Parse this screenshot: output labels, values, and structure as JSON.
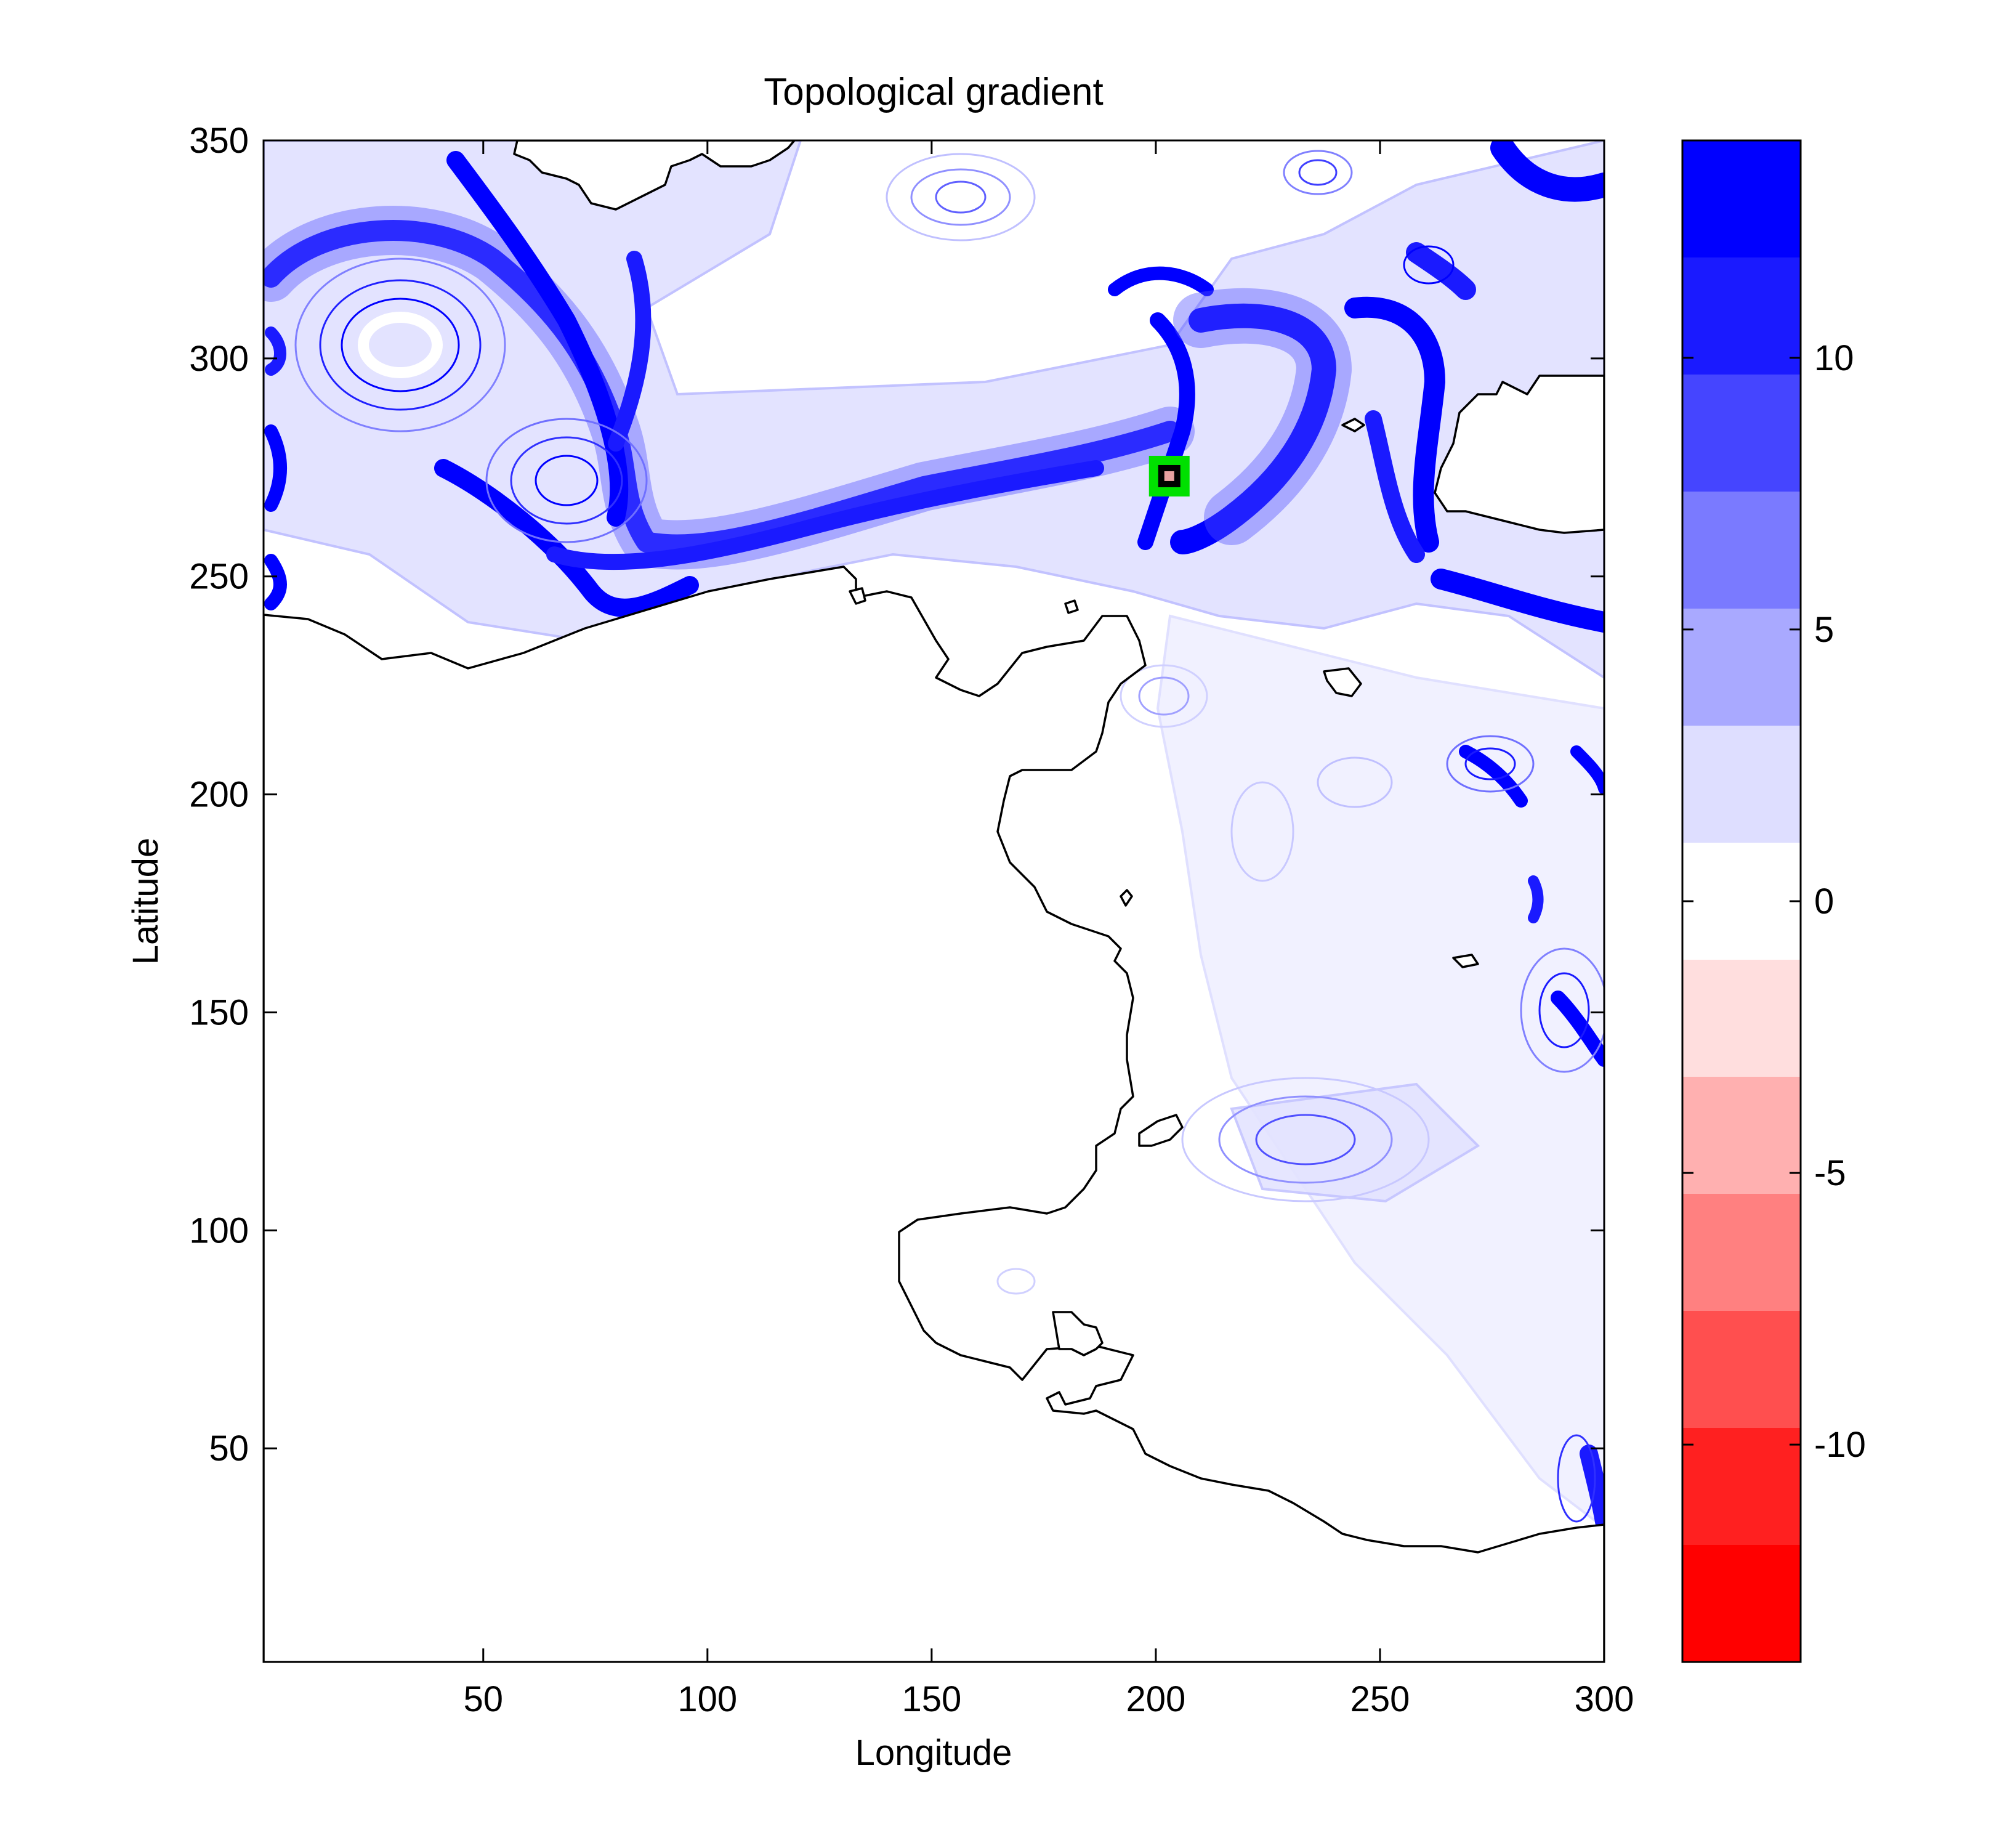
{
  "chart_data": {
    "type": "contour",
    "title": "Topological gradient",
    "xlabel": "Longitude",
    "ylabel": "Latitude",
    "xlim": [
      1,
      300
    ],
    "ylim": [
      1,
      350
    ],
    "x_ticks": [
      "50",
      "100",
      "150",
      "200",
      "250",
      "300"
    ],
    "y_ticks": [
      "50",
      "100",
      "150",
      "200",
      "250",
      "300",
      "350"
    ],
    "colorbar": {
      "range": [
        -14,
        14
      ],
      "tick_labels": [
        "10",
        "5",
        "0",
        "-5",
        "-10"
      ],
      "tick_values": [
        10,
        5,
        0,
        -5,
        -10
      ],
      "levels": 13,
      "colors": [
        "#0000ff",
        "#1a1aff",
        "#4545ff",
        "#7a7aff",
        "#a9a9ff",
        "#dedeff",
        "#ffffff",
        "#ffdede",
        "#ffb0b0",
        "#ff8080",
        "#ff4f4f",
        "#ff2020",
        "#ff0000"
      ]
    },
    "marker": {
      "x": 203,
      "y": 273,
      "outer_color": "#00e000",
      "inner_color": "#e8a0a0"
    },
    "coastline_color": "#000000",
    "grid": false
  }
}
